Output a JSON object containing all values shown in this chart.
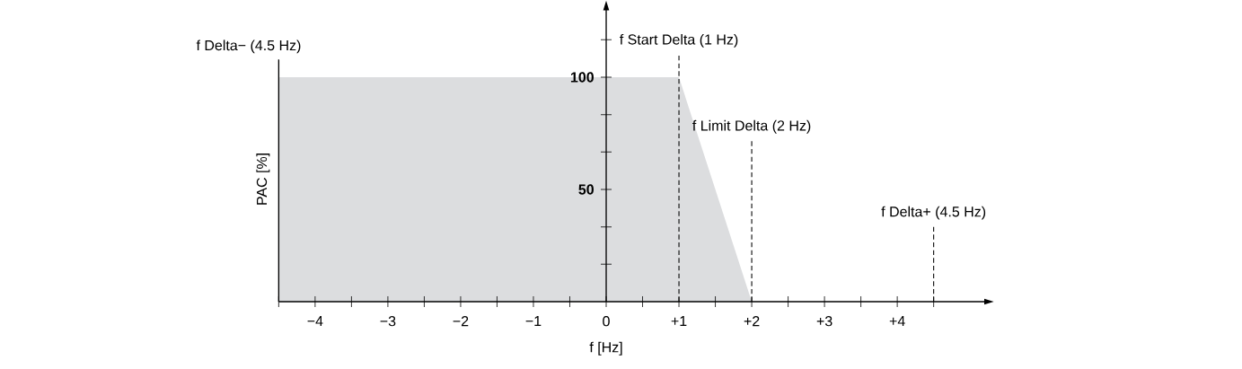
{
  "chart_data": {
    "type": "area",
    "xlabel": "f [Hz]",
    "ylabel": "PAC [%]",
    "x": [
      -4.5,
      1,
      2
    ],
    "series": [
      {
        "color": "#dcdddf",
        "values": [
          100,
          100,
          0
        ]
      }
    ],
    "xlim": [
      -4.5,
      5.2
    ],
    "ylim": [
      0,
      130
    ],
    "xticks": [
      {
        "value": -4.5,
        "label": null
      },
      {
        "value": -4,
        "label": "−4"
      },
      {
        "value": -3.5,
        "label": null
      },
      {
        "value": -3,
        "label": "−3"
      },
      {
        "value": -2.5,
        "label": null
      },
      {
        "value": -2,
        "label": "−2"
      },
      {
        "value": -1.5,
        "label": null
      },
      {
        "value": -1,
        "label": "−1"
      },
      {
        "value": -0.5,
        "label": null
      },
      0,
      {
        "value": 0.5,
        "label": null
      },
      {
        "value": 1,
        "label": "+1"
      },
      {
        "value": 1.5,
        "label": null
      },
      {
        "value": 2,
        "label": "+2"
      },
      {
        "value": 2.5,
        "label": null
      },
      {
        "value": 3,
        "label": "+3"
      },
      {
        "value": 3.5,
        "label": null
      },
      {
        "value": 4,
        "label": "+4"
      },
      {
        "value": 4.5,
        "label": null
      }
    ],
    "yticks": [
      {
        "value": 16.7,
        "label": null
      },
      {
        "value": 33.3,
        "label": null
      },
      50,
      {
        "value": 66.7,
        "label": null
      },
      {
        "value": 83.3,
        "label": null
      },
      100,
      {
        "value": 116.7,
        "label": null
      }
    ],
    "ref_lines": [
      {
        "axis": "x",
        "value": -4.5,
        "label": "f Delta− (4.5 Hz)",
        "line_style": "solid"
      },
      {
        "axis": "x",
        "value": 1,
        "label": "f Start Delta (1 Hz)",
        "line_style": "dashed"
      },
      {
        "axis": "x",
        "value": 2,
        "label": "f Limit Delta (2 Hz)",
        "line_style": "dashed"
      },
      {
        "axis": "x",
        "value": 4.5,
        "label": "f Delta+ (4.5 Hz)",
        "line_style": "dashed"
      }
    ]
  }
}
